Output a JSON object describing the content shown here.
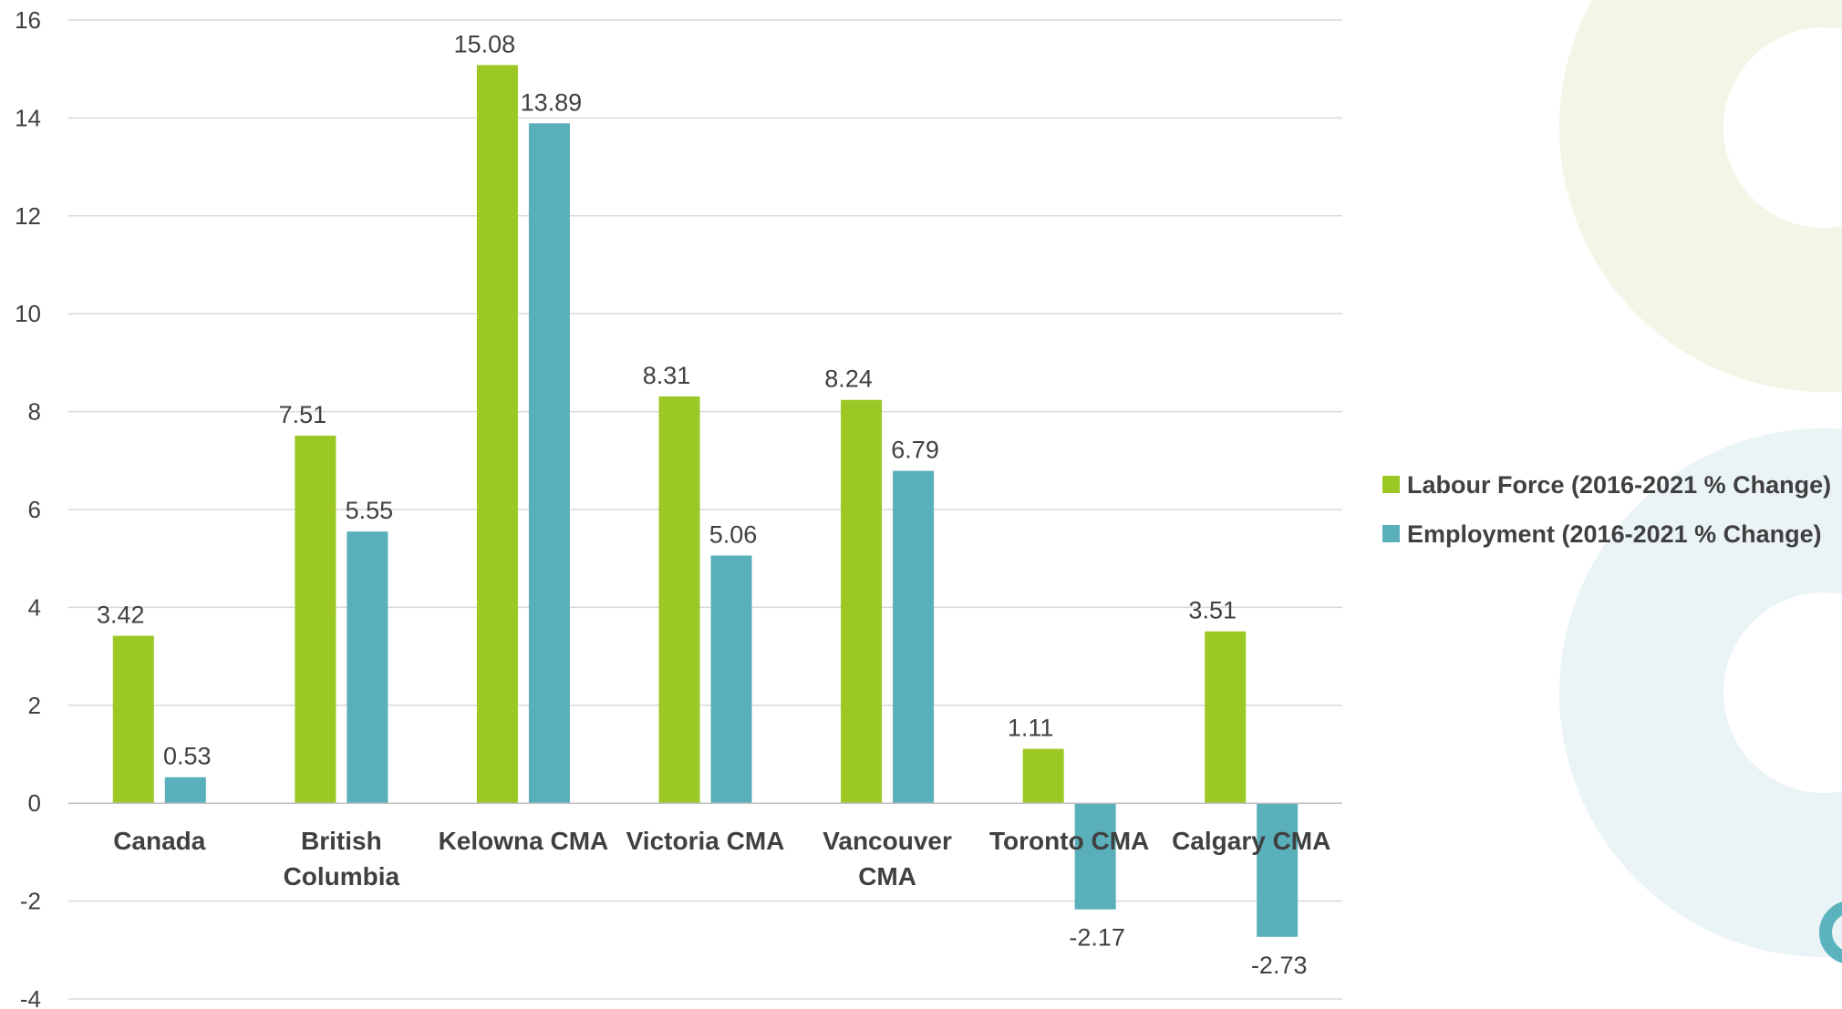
{
  "chart_data": {
    "type": "bar",
    "categories": [
      [
        "Canada"
      ],
      [
        "British",
        "Columbia"
      ],
      [
        "Kelowna CMA"
      ],
      [
        "Victoria CMA"
      ],
      [
        "Vancouver",
        "CMA"
      ],
      [
        "Toronto CMA"
      ],
      [
        "Calgary CMA"
      ]
    ],
    "series": [
      {
        "name": "Labour Force (2016-2021 % Change)",
        "values": [
          3.42,
          7.51,
          15.08,
          8.31,
          8.24,
          1.11,
          3.51
        ],
        "labels": [
          "3.42",
          "7.51",
          "15.08",
          "8.31",
          "8.24",
          "1.11",
          "3.51"
        ],
        "color": "#9BC825"
      },
      {
        "name": "Employment (2016-2021 % Change)",
        "values": [
          0.53,
          5.55,
          13.89,
          5.06,
          6.79,
          -2.17,
          -2.73
        ],
        "labels": [
          "0.53",
          "5.55",
          "13.89",
          "5.06",
          "6.79",
          "-2.17",
          "-2.73"
        ],
        "color": "#59AFBA"
      }
    ],
    "yticks": [
      16,
      14,
      12,
      10,
      8,
      6,
      4,
      2,
      0,
      -2,
      -4
    ],
    "ylim": [
      -4,
      16
    ],
    "grid": true,
    "legend_position": "right",
    "title": "",
    "xlabel": "",
    "ylabel": ""
  },
  "decoration": {
    "colors": [
      "#F1F6E6",
      "#EAF3F5"
    ]
  }
}
